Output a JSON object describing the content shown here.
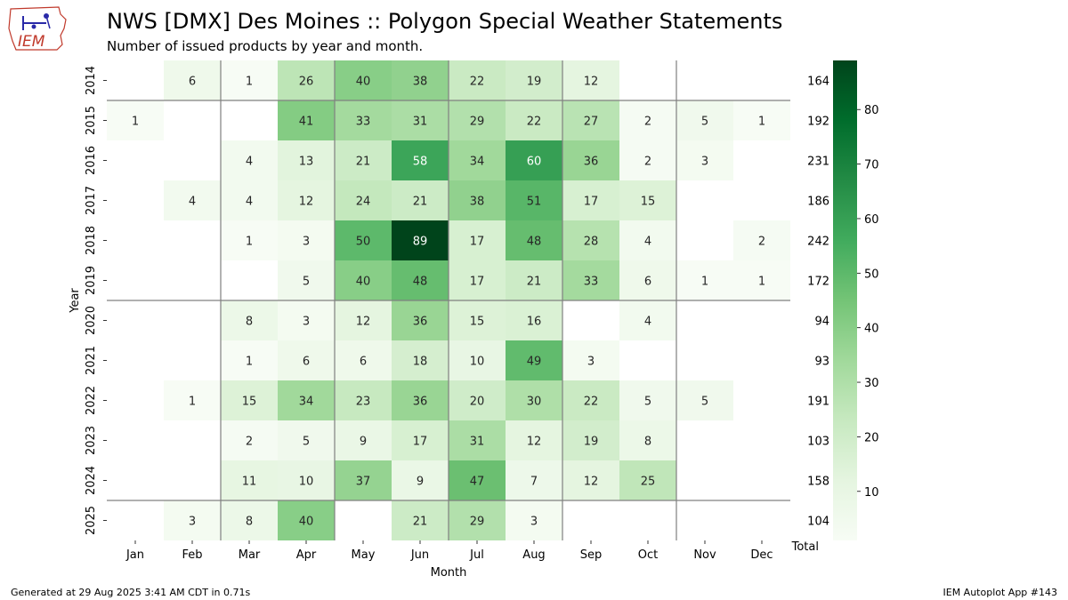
{
  "header": {
    "title": "NWS [DMX] Des Moines :: Polygon Special Weather Statements",
    "subtitle": "Number of issued products by year and month.",
    "logo_text": "IEM"
  },
  "footer": {
    "generated": "Generated at 29 Aug 2025 3:41 AM CDT in 0.71s",
    "app": "IEM Autoplot App #143"
  },
  "chart_data": {
    "type": "heatmap",
    "title": "NWS [DMX] Des Moines :: Polygon Special Weather Statements",
    "subtitle": "Number of issued products by year and month.",
    "xlabel": "Month",
    "ylabel": "Year",
    "total_label": "Total",
    "months": [
      "Jan",
      "Feb",
      "Mar",
      "Apr",
      "May",
      "Jun",
      "Jul",
      "Aug",
      "Sep",
      "Oct",
      "Nov",
      "Dec"
    ],
    "years": [
      "2014",
      "2015",
      "2016",
      "2017",
      "2018",
      "2019",
      "2020",
      "2021",
      "2022",
      "2023",
      "2024",
      "2025"
    ],
    "values": [
      [
        null,
        6,
        1,
        26,
        40,
        38,
        22,
        19,
        12,
        null,
        null,
        null
      ],
      [
        1,
        null,
        null,
        41,
        33,
        31,
        29,
        22,
        27,
        2,
        5,
        1
      ],
      [
        null,
        null,
        4,
        13,
        21,
        58,
        34,
        60,
        36,
        2,
        3,
        null
      ],
      [
        null,
        4,
        4,
        12,
        24,
        21,
        38,
        51,
        17,
        15,
        null,
        null
      ],
      [
        null,
        null,
        1,
        3,
        50,
        89,
        17,
        48,
        28,
        4,
        null,
        2
      ],
      [
        null,
        null,
        null,
        5,
        40,
        48,
        17,
        21,
        33,
        6,
        1,
        1
      ],
      [
        null,
        null,
        8,
        3,
        12,
        36,
        15,
        16,
        null,
        4,
        null,
        null
      ],
      [
        null,
        null,
        1,
        6,
        6,
        18,
        10,
        49,
        3,
        null,
        null,
        null
      ],
      [
        null,
        1,
        15,
        34,
        23,
        36,
        20,
        30,
        22,
        5,
        5,
        null
      ],
      [
        null,
        null,
        2,
        5,
        9,
        17,
        31,
        12,
        19,
        8,
        null,
        null
      ],
      [
        null,
        null,
        11,
        10,
        37,
        9,
        47,
        7,
        12,
        25,
        null,
        null
      ],
      [
        null,
        3,
        8,
        40,
        null,
        21,
        29,
        3,
        null,
        null,
        null,
        null
      ]
    ],
    "totals": [
      164,
      192,
      231,
      186,
      242,
      172,
      94,
      93,
      191,
      103,
      158,
      104
    ],
    "colorbar": {
      "colormap": "Greens",
      "range": [
        1,
        89
      ],
      "ticks": [
        10,
        20,
        30,
        40,
        50,
        60,
        70,
        80
      ]
    },
    "grid": "separators between Feb|Mar, Apr|May, Jun|Jul, Aug|Sep, Oct|Nov and after 2014, 2019, 2024"
  }
}
